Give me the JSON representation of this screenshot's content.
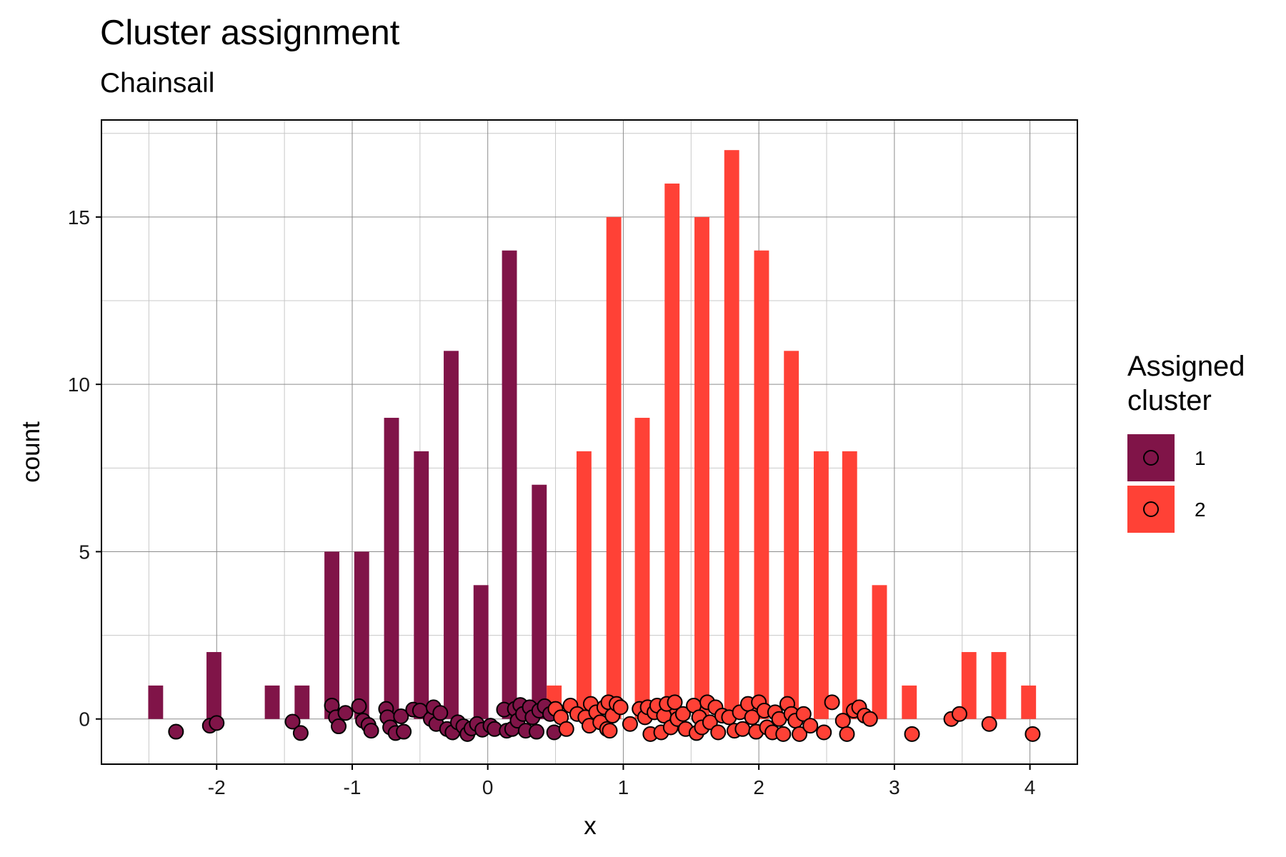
{
  "chart_data": {
    "type": "bar",
    "title": "Cluster assignment",
    "subtitle": "Chainsail",
    "xlabel": "x",
    "ylabel": "count",
    "xlim": [
      -2.85,
      4.35
    ],
    "ylim": [
      -1.35,
      17.9
    ],
    "x_ticks": [
      -2,
      -1,
      0,
      1,
      2,
      3,
      4
    ],
    "y_ticks": [
      0,
      5,
      10,
      15
    ],
    "x_tick_labels": [
      "-2",
      "-1",
      "0",
      "1",
      "2",
      "3",
      "4"
    ],
    "y_tick_labels": [
      "0",
      "5",
      "10",
      "15"
    ],
    "grid": true,
    "legend": {
      "title": "Assigned cluster",
      "position": "right",
      "entries": [
        {
          "label": "1",
          "color": "#801448"
        },
        {
          "label": "2",
          "color": "#FF4136"
        }
      ]
    },
    "bar_width": 0.11,
    "series": [
      {
        "name": "1",
        "color": "#801448",
        "bars": [
          {
            "x": -2.45,
            "y": 1
          },
          {
            "x": -2.02,
            "y": 2
          },
          {
            "x": -1.59,
            "y": 1
          },
          {
            "x": -1.37,
            "y": 1
          },
          {
            "x": -1.15,
            "y": 5
          },
          {
            "x": -0.93,
            "y": 5
          },
          {
            "x": -0.71,
            "y": 9
          },
          {
            "x": -0.49,
            "y": 8
          },
          {
            "x": -0.27,
            "y": 11
          },
          {
            "x": -0.05,
            "y": 4
          },
          {
            "x": 0.16,
            "y": 14
          },
          {
            "x": 0.38,
            "y": 7
          }
        ],
        "points": [
          [
            -2.3,
            -0.38
          ],
          [
            -2.05,
            -0.2
          ],
          [
            -2.0,
            -0.12
          ],
          [
            -1.44,
            -0.08
          ],
          [
            -1.38,
            -0.42
          ],
          [
            -1.15,
            0.4
          ],
          [
            -1.12,
            0.05
          ],
          [
            -1.1,
            -0.22
          ],
          [
            -1.05,
            0.18
          ],
          [
            -0.95,
            0.38
          ],
          [
            -0.92,
            -0.05
          ],
          [
            -0.88,
            -0.18
          ],
          [
            -0.86,
            -0.35
          ],
          [
            -0.75,
            0.3
          ],
          [
            -0.74,
            0.05
          ],
          [
            -0.72,
            -0.25
          ],
          [
            -0.68,
            -0.42
          ],
          [
            -0.64,
            0.08
          ],
          [
            -0.62,
            -0.38
          ],
          [
            -0.55,
            0.28
          ],
          [
            -0.5,
            0.25
          ],
          [
            -0.42,
            0.0
          ],
          [
            -0.4,
            0.35
          ],
          [
            -0.38,
            -0.15
          ],
          [
            -0.35,
            0.18
          ],
          [
            -0.3,
            -0.3
          ],
          [
            -0.26,
            -0.4
          ],
          [
            -0.22,
            -0.1
          ],
          [
            -0.18,
            -0.22
          ],
          [
            -0.15,
            -0.45
          ],
          [
            -0.12,
            -0.28
          ],
          [
            -0.08,
            -0.15
          ],
          [
            -0.04,
            -0.32
          ],
          [
            0.02,
            -0.2
          ],
          [
            0.05,
            -0.3
          ],
          [
            0.12,
            0.28
          ],
          [
            0.14,
            -0.35
          ],
          [
            0.18,
            -0.3
          ],
          [
            0.2,
            0.3
          ],
          [
            0.22,
            -0.05
          ],
          [
            0.24,
            0.42
          ],
          [
            0.26,
            0.15
          ],
          [
            0.28,
            -0.35
          ],
          [
            0.31,
            0.35
          ],
          [
            0.33,
            0.05
          ],
          [
            0.36,
            -0.38
          ],
          [
            0.38,
            0.25
          ],
          [
            0.42,
            0.38
          ],
          [
            0.46,
            0.15
          ],
          [
            0.49,
            -0.4
          ]
        ]
      },
      {
        "name": "2",
        "color": "#FF4136",
        "bars": [
          {
            "x": 0.49,
            "y": 1
          },
          {
            "x": 0.71,
            "y": 8
          },
          {
            "x": 0.93,
            "y": 15
          },
          {
            "x": 1.14,
            "y": 9
          },
          {
            "x": 1.36,
            "y": 16
          },
          {
            "x": 1.58,
            "y": 15
          },
          {
            "x": 1.8,
            "y": 17
          },
          {
            "x": 2.02,
            "y": 14
          },
          {
            "x": 2.24,
            "y": 11
          },
          {
            "x": 2.46,
            "y": 8
          },
          {
            "x": 2.67,
            "y": 8
          },
          {
            "x": 2.89,
            "y": 4
          },
          {
            "x": 3.11,
            "y": 1
          },
          {
            "x": 3.55,
            "y": 2
          },
          {
            "x": 3.77,
            "y": 2
          },
          {
            "x": 3.99,
            "y": 1
          }
        ],
        "points": [
          [
            0.5,
            0.3
          ],
          [
            0.54,
            0.05
          ],
          [
            0.58,
            -0.3
          ],
          [
            0.61,
            0.4
          ],
          [
            0.66,
            0.15
          ],
          [
            0.72,
            0.05
          ],
          [
            0.75,
            -0.2
          ],
          [
            0.76,
            0.45
          ],
          [
            0.8,
            0.2
          ],
          [
            0.83,
            -0.1
          ],
          [
            0.86,
            0.35
          ],
          [
            0.88,
            -0.3
          ],
          [
            0.89,
            0.5
          ],
          [
            0.9,
            -0.35
          ],
          [
            0.92,
            0.1
          ],
          [
            0.95,
            0.45
          ],
          [
            0.98,
            0.35
          ],
          [
            1.05,
            -0.15
          ],
          [
            1.12,
            0.3
          ],
          [
            1.16,
            0.05
          ],
          [
            1.18,
            0.35
          ],
          [
            1.2,
            -0.45
          ],
          [
            1.23,
            0.2
          ],
          [
            1.25,
            0.4
          ],
          [
            1.28,
            -0.4
          ],
          [
            1.3,
            0.1
          ],
          [
            1.32,
            0.45
          ],
          [
            1.35,
            -0.25
          ],
          [
            1.38,
            0.5
          ],
          [
            1.4,
            0.0
          ],
          [
            1.44,
            0.15
          ],
          [
            1.46,
            -0.3
          ],
          [
            1.52,
            0.4
          ],
          [
            1.54,
            -0.42
          ],
          [
            1.56,
            0.05
          ],
          [
            1.58,
            -0.25
          ],
          [
            1.62,
            0.5
          ],
          [
            1.64,
            -0.1
          ],
          [
            1.68,
            0.35
          ],
          [
            1.7,
            -0.4
          ],
          [
            1.73,
            0.1
          ],
          [
            1.78,
            0.05
          ],
          [
            1.82,
            -0.35
          ],
          [
            1.86,
            0.2
          ],
          [
            1.88,
            -0.3
          ],
          [
            1.92,
            0.45
          ],
          [
            1.95,
            0.05
          ],
          [
            1.98,
            -0.38
          ],
          [
            2.0,
            0.5
          ],
          [
            2.04,
            0.25
          ],
          [
            2.06,
            -0.25
          ],
          [
            2.1,
            -0.4
          ],
          [
            2.12,
            0.2
          ],
          [
            2.15,
            0.0
          ],
          [
            2.18,
            -0.45
          ],
          [
            2.21,
            0.45
          ],
          [
            2.24,
            0.15
          ],
          [
            2.27,
            -0.05
          ],
          [
            2.3,
            -0.45
          ],
          [
            2.33,
            0.15
          ],
          [
            2.38,
            -0.2
          ],
          [
            2.48,
            -0.4
          ],
          [
            2.54,
            0.5
          ],
          [
            2.62,
            -0.05
          ],
          [
            2.65,
            -0.45
          ],
          [
            2.7,
            0.25
          ],
          [
            2.74,
            0.35
          ],
          [
            2.78,
            0.1
          ],
          [
            2.82,
            0.0
          ],
          [
            3.13,
            -0.45
          ],
          [
            3.42,
            0.0
          ],
          [
            3.48,
            0.15
          ],
          [
            3.7,
            -0.15
          ],
          [
            4.02,
            -0.45
          ]
        ]
      }
    ]
  }
}
